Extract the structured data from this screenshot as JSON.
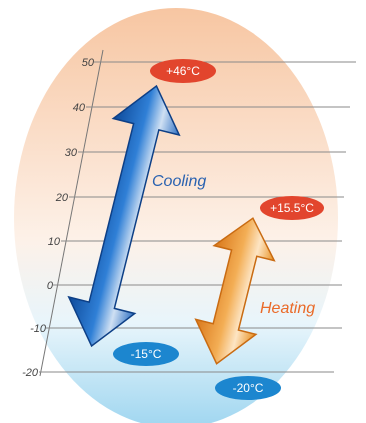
{
  "scale": {
    "ticks": [
      "50",
      "40",
      "30",
      "20",
      "10",
      "0",
      "-10",
      "-20"
    ]
  },
  "cooling": {
    "label": "Cooling",
    "max_label": "+46°C",
    "min_label": "-15°C"
  },
  "heating": {
    "label": "Heating",
    "max_label": "+15.5°C",
    "min_label": "-20°C"
  },
  "colors": {
    "background_top": "#f6c9a6",
    "background_bottom": "#9fd6f0",
    "cooling_arrow": "#1f63b5",
    "heating_arrow": "#f0a23a",
    "max_badge": "#e2452d",
    "min_badge": "#1c86cf",
    "cooling_text": "#2a62b0",
    "heating_text": "#ea6a28"
  }
}
